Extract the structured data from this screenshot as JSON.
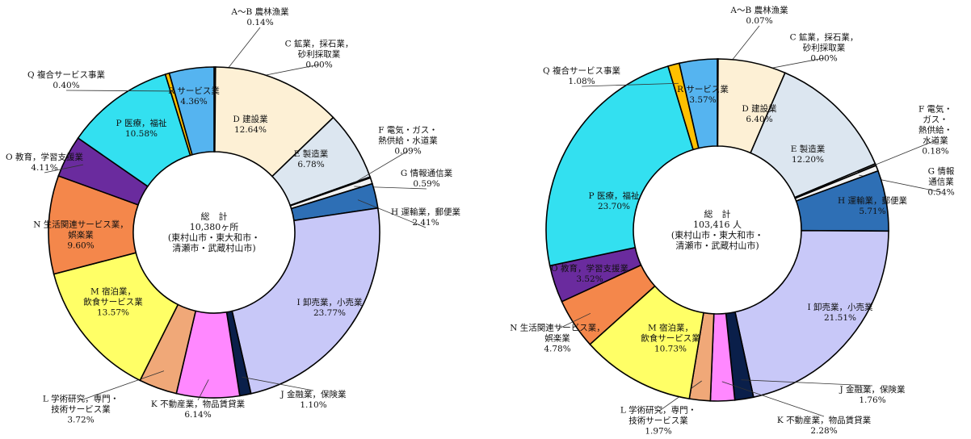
{
  "chart_data": [
    {
      "type": "donut",
      "center_title": "総　計",
      "center_total": "10,380ヶ所",
      "center_area": "(東村山市・東大和市・\n清瀬市・武蔵村山市)",
      "categories": [
        "A～B 農林漁業",
        "C 鉱業，採石業，\n砂利採取業",
        "D 建設業",
        "E 製造業",
        "F 電気・ガス・\n熱供給・水道業",
        "G 情報通信業",
        "H 運輸業，郵便業",
        "I 卸売業，小売業",
        "J 金融業，保険業",
        "K 不動産業，物品賃貸業",
        "L 学術研究，専門・\n技術サービス業",
        "M 宿泊業，\n飲食サービス業",
        "N 生活関連サービス業，\n娯楽業",
        "O 教育，学習支援業",
        "P 医療，福祉",
        "Q 複合サービス事業",
        "R サービス業"
      ],
      "values": [
        0.14,
        0.0,
        12.64,
        6.78,
        0.09,
        0.59,
        2.41,
        23.77,
        1.1,
        6.14,
        3.72,
        13.57,
        9.6,
        4.11,
        10.58,
        0.4,
        4.36
      ],
      "value_labels": [
        "0.14%",
        "0.00%",
        "12.64%",
        "6.78%",
        "0.09%",
        "0.59%",
        "2.41%",
        "23.77%",
        "1.10%",
        "6.14%",
        "3.72%",
        "13.57%",
        "9.60%",
        "4.11%",
        "10.58%",
        "0.40%",
        "4.36%"
      ],
      "colors": [
        "#d9d9d9",
        "#ffffff",
        "#fdf0d5",
        "#dce6f0",
        "#ffffff",
        "#f2f2f2",
        "#2e6fb5",
        "#c8c8f8",
        "#0a1f4a",
        "#ff88ff",
        "#f0a878",
        "#ffff66",
        "#f4874b",
        "#6a2b9e",
        "#33e0f0",
        "#ffc000",
        "#55b4f0"
      ]
    },
    {
      "type": "donut",
      "center_title": "総　計",
      "center_total": "103,416 人",
      "center_area": "(東村山市・東大和市・\n清瀬市・武蔵村山市)",
      "categories": [
        "A～B 農林漁業",
        "C 鉱業，採石業，\n砂利採取業",
        "D 建設業",
        "E 製造業",
        "F 電気・ガス・\n熱供給・水道業",
        "G 情報通信業",
        "H 運輸業，郵便業",
        "I 卸売業，小売業",
        "J 金融業，保険業",
        "K 不動産業，物品賃貸業",
        "L 学術研究，専門・\n技術サービス業",
        "M 宿泊業，\n飲食サービス業",
        "N 生活関連サービス業，\n娯楽業",
        "O 教育，学習支援業",
        "P 医療，福祉",
        "Q 複合サービス事業",
        "R サービス業"
      ],
      "values": [
        0.07,
        0.0,
        6.4,
        12.2,
        0.18,
        0.54,
        5.71,
        21.51,
        1.76,
        2.28,
        1.97,
        10.73,
        4.78,
        3.52,
        23.7,
        1.08,
        3.57
      ],
      "value_labels": [
        "0.07%",
        "0.00%",
        "6.40%",
        "12.20%",
        "0.18%",
        "0.54%",
        "5.71%",
        "21.51%",
        "1.76%",
        "2.28%",
        "1.97%",
        "10.73%",
        "4.78%",
        "3.52%",
        "23.70%",
        "1.08%",
        "3.57%"
      ],
      "colors": [
        "#d9d9d9",
        "#ffffff",
        "#fdf0d5",
        "#dce6f0",
        "#ffffff",
        "#f2f2f2",
        "#2e6fb5",
        "#c8c8f8",
        "#0a1f4a",
        "#ff88ff",
        "#f0a878",
        "#ffff66",
        "#f4874b",
        "#6a2b9e",
        "#33e0f0",
        "#ffc000",
        "#55b4f0"
      ]
    }
  ]
}
